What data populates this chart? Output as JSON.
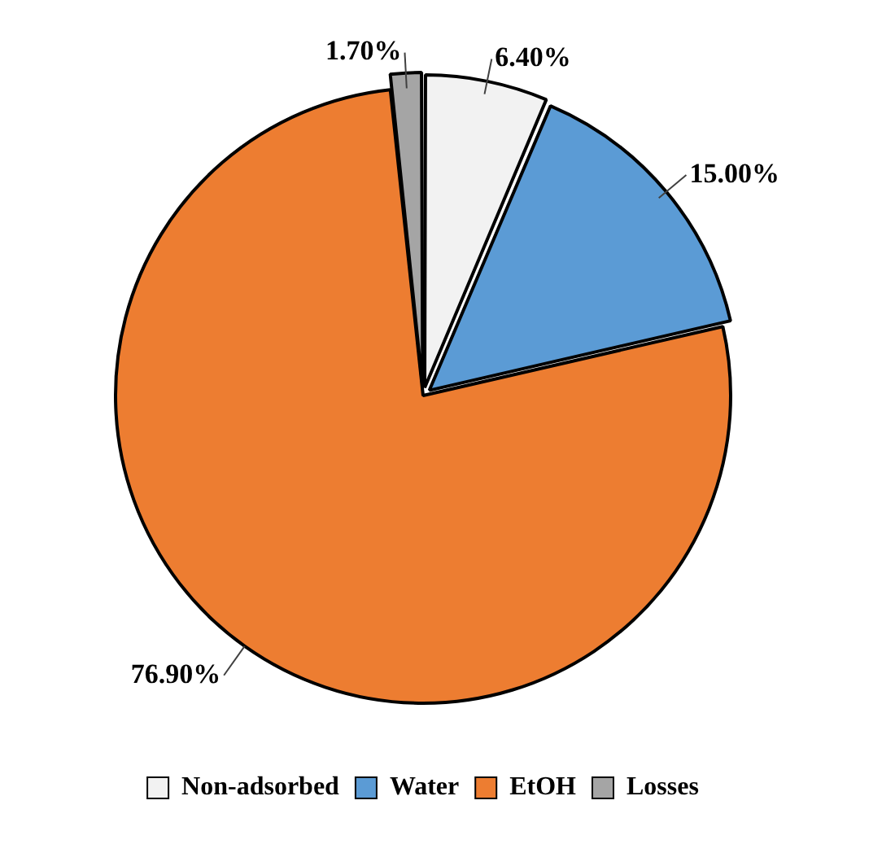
{
  "chart_data": {
    "type": "pie",
    "categories": [
      "Non-adsorbed",
      "Water",
      "EtOH",
      "Losses"
    ],
    "values": [
      6.4,
      15.0,
      76.9,
      1.7
    ],
    "colors": [
      "#f2f2f2",
      "#5b9bd5",
      "#ed7d31",
      "#a5a5a5"
    ],
    "value_labels": [
      "6.40%",
      "15.00%",
      "76.90%",
      "1.70%"
    ],
    "legend": "bottom"
  }
}
